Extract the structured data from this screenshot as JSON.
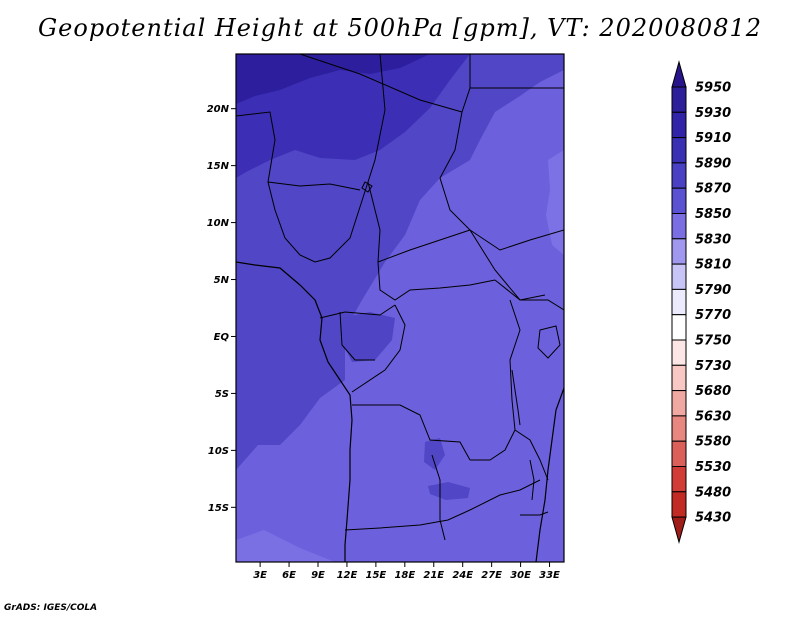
{
  "title": "Geopotential Height at 500hPa [gpm], VT: 2020080812",
  "credit": "GrADS: IGES/COLA",
  "map": {
    "lat_ticks": [
      "20N",
      "15N",
      "10N",
      "5N",
      "EQ",
      "5S",
      "10S",
      "15S"
    ],
    "lon_ticks": [
      "3E",
      "6E",
      "9E",
      "12E",
      "15E",
      "18E",
      "21E",
      "24E",
      "27E",
      "30E",
      "33E"
    ],
    "lon_range": [
      0.5,
      34.5
    ],
    "lat_range": [
      -19.8,
      24.8
    ]
  },
  "colorbar": {
    "levels": [
      "5950",
      "5930",
      "5910",
      "5890",
      "5870",
      "5850",
      "5830",
      "5810",
      "5790",
      "5770",
      "5750",
      "5730",
      "5680",
      "5630",
      "5580",
      "5530",
      "5480",
      "5430"
    ],
    "colors": [
      "#28158c",
      "#2d1e9a",
      "#3224a8",
      "#3a30b4",
      "#4a40c4",
      "#5a52d2",
      "#7a6ee2",
      "#a098ee",
      "#c8c4f6",
      "#ecebfd",
      "#ffffff",
      "#fde7e6",
      "#f8c8c4",
      "#f0a8a2",
      "#e88680",
      "#dc605a",
      "#d23c36",
      "#c22a24",
      "#a01c18"
    ]
  }
}
